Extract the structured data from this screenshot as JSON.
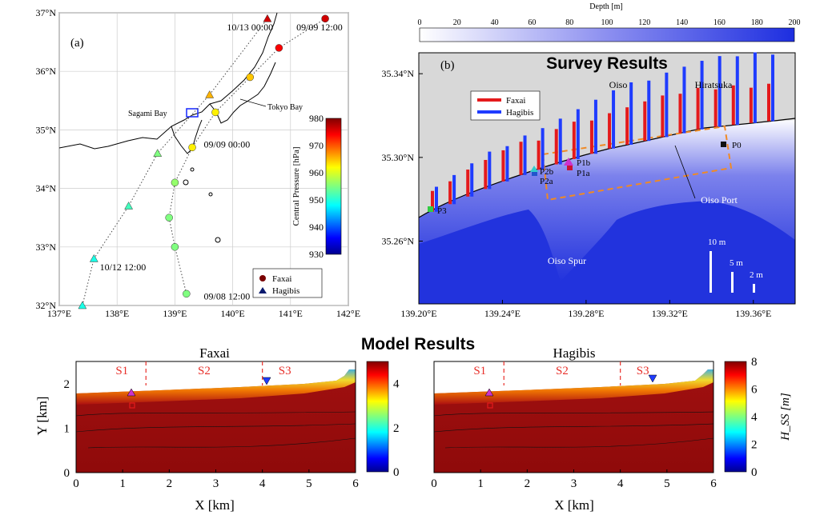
{
  "figure": {
    "survey_title": "Survey Results",
    "model_title": "Model Results"
  },
  "colors": {
    "faxai": "#e41a1c",
    "hagibis": "#1f3cff",
    "land": "#d8d8d8",
    "sea_deep": "#2233dd",
    "scenario_marker": "#e8302a"
  },
  "chart_data": [
    {
      "type": "scatter",
      "panel": "(a)",
      "description_of_type": "typhoon track map",
      "xlabel": "",
      "ylabel": "",
      "xlim": [
        137,
        142
      ],
      "ylim": [
        32,
        37
      ],
      "x_ticks": [
        "137°E",
        "138°E",
        "139°E",
        "140°E",
        "141°E",
        "142°E"
      ],
      "y_ticks": [
        "32°N",
        "33°N",
        "34°N",
        "35°N",
        "36°N",
        "37°N"
      ],
      "grid": true,
      "colorbar": {
        "label": "Central Pressure [hPa]",
        "ticks": [
          "930",
          "940",
          "950",
          "960",
          "970",
          "980"
        ],
        "range": [
          930,
          980
        ]
      },
      "legend": {
        "placement": "bottom-right",
        "entries": [
          "Faxai",
          "Hagibis"
        ]
      },
      "place_labels": [
        "Sagami Bay",
        "Tokyo Bay"
      ],
      "series": [
        {
          "name": "Faxai",
          "marker": "circle",
          "points": [
            {
              "x": 139.2,
              "y": 32.2,
              "p": 955
            },
            {
              "x": 139.0,
              "y": 33.0,
              "p": 955
            },
            {
              "x": 138.9,
              "y": 33.5,
              "p": 955
            },
            {
              "x": 139.0,
              "y": 34.1,
              "p": 956
            },
            {
              "x": 139.3,
              "y": 34.7,
              "p": 962
            },
            {
              "x": 139.7,
              "y": 35.3,
              "p": 962
            },
            {
              "x": 140.3,
              "y": 35.9,
              "p": 964
            },
            {
              "x": 140.8,
              "y": 36.4,
              "p": 974
            },
            {
              "x": 141.6,
              "y": 36.9,
              "p": 976
            }
          ]
        },
        {
          "name": "Hagibis",
          "marker": "triangle",
          "points": [
            {
              "x": 137.4,
              "y": 32.0,
              "p": 950
            },
            {
              "x": 137.6,
              "y": 32.8,
              "p": 950
            },
            {
              "x": 138.2,
              "y": 33.7,
              "p": 952
            },
            {
              "x": 138.7,
              "y": 34.6,
              "p": 955
            },
            {
              "x": 139.6,
              "y": 35.6,
              "p": 965
            },
            {
              "x": 140.6,
              "y": 36.9,
              "p": 976
            }
          ]
        }
      ],
      "annotations": [
        {
          "text": "10/13 00:00",
          "x": 140.3,
          "y": 36.7
        },
        {
          "text": "09/09 12:00",
          "x": 141.5,
          "y": 36.7
        },
        {
          "text": "09/09 00:00",
          "x": 139.9,
          "y": 34.7
        },
        {
          "text": "10/12 12:00",
          "x": 138.1,
          "y": 32.6
        },
        {
          "text": "09/08 12:00",
          "x": 139.9,
          "y": 32.1
        }
      ]
    },
    {
      "type": "bar",
      "panel": "(b)",
      "description_of_type": "inundation height bars over bathymetry map",
      "xlabel": "",
      "ylabel": "",
      "xlim": [
        139.2,
        139.38
      ],
      "ylim": [
        35.23,
        35.35
      ],
      "x_ticks": [
        "139.20°E",
        "139.24°E",
        "139.28°E",
        "139.32°E",
        "139.36°E"
      ],
      "y_ticks": [
        "35.26°N",
        "35.30°N",
        "35.34°N"
      ],
      "colorbar": {
        "label": "Depth [m]",
        "ticks": [
          "0",
          "20",
          "40",
          "60",
          "80",
          "100",
          "120",
          "140",
          "160",
          "180",
          "200"
        ],
        "range": [
          0,
          200
        ]
      },
      "legend": {
        "placement": "top-left",
        "entries": [
          "Faxai",
          "Hagibis"
        ]
      },
      "place_labels": [
        "Oiso",
        "Hiratsuka",
        "Oiso Port",
        "Oiso Spur"
      ],
      "points": [
        "P0",
        "P1a",
        "P1b",
        "P2a",
        "P2b",
        "P3"
      ],
      "scale_bars": [
        "10 m",
        "5 m",
        "2 m"
      ],
      "series": [
        {
          "name": "Faxai",
          "heights_m": [
            5.0,
            5.5,
            6.5,
            7.0,
            7.5,
            8.0,
            7.0,
            8.5,
            9.0,
            8.0,
            8.5,
            9.0,
            9.5,
            10.0,
            9.5,
            10.0,
            9.0,
            9.5,
            8.5,
            9.0
          ]
        },
        {
          "name": "Hagibis",
          "heights_m": [
            6.0,
            7.0,
            8.0,
            9.0,
            8.5,
            9.5,
            10.0,
            11.0,
            12.0,
            13.0,
            14.0,
            15.0,
            14.5,
            15.5,
            16.0,
            16.5,
            17.0,
            16.5,
            17.0,
            16.0
          ]
        }
      ]
    },
    {
      "type": "heatmap",
      "panel": "(a)",
      "title": "Faxai",
      "xlabel": "X [km]",
      "ylabel": "Y [km]",
      "xlim": [
        0,
        6
      ],
      "ylim": [
        0,
        2.5
      ],
      "x_ticks": [
        "0",
        "1",
        "2",
        "3",
        "4",
        "5",
        "6"
      ],
      "y_ticks": [
        "0",
        "1",
        "2"
      ],
      "colorbar": {
        "label": "",
        "ticks": [
          "0",
          "2",
          "4"
        ],
        "range": [
          0,
          5
        ]
      },
      "sections": [
        "S1",
        "S2",
        "S3"
      ],
      "section_boundaries_km": [
        1.5,
        4.0
      ]
    },
    {
      "type": "heatmap",
      "panel": "(b)",
      "title": "Hagibis",
      "xlabel": "X [km]",
      "ylabel": "",
      "xlim": [
        0,
        6
      ],
      "ylim": [
        0,
        2.5
      ],
      "x_ticks": [
        "0",
        "1",
        "2",
        "3",
        "4",
        "5",
        "6"
      ],
      "colorbar": {
        "label": "H_SS [m]",
        "ticks": [
          "0",
          "2",
          "4",
          "6",
          "8"
        ],
        "range": [
          0,
          8
        ]
      },
      "sections": [
        "S1",
        "S2",
        "S3"
      ],
      "section_boundaries_km": [
        1.5,
        4.0
      ]
    }
  ]
}
